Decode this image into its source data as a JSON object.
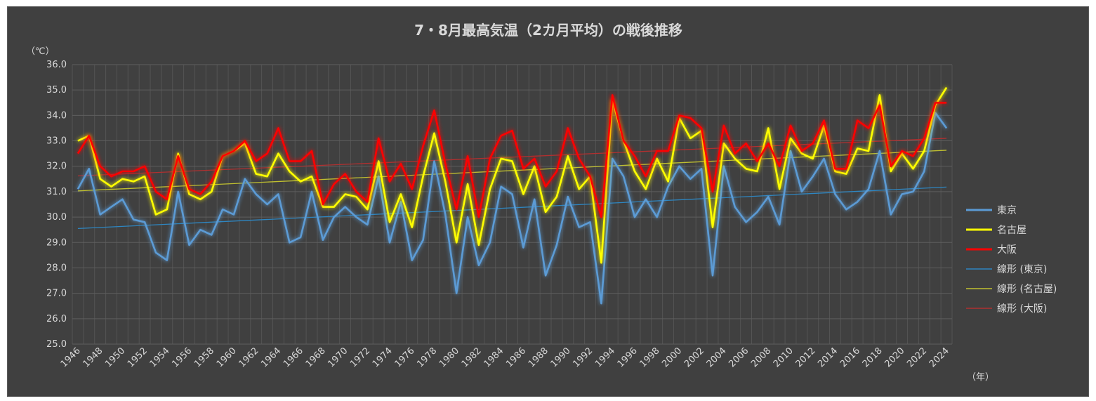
{
  "chart_data": {
    "type": "line",
    "title": "7・8月最高気温（2カ月平均）の戦後推移",
    "yunit": "（℃）",
    "xunit": "（年）",
    "ylim": [
      25.0,
      36.0
    ],
    "ystep": 1.0,
    "y_ticks": [
      "25.0",
      "26.0",
      "27.0",
      "28.0",
      "29.0",
      "30.0",
      "31.0",
      "32.0",
      "33.0",
      "34.0",
      "35.0",
      "36.0"
    ],
    "x_start": 1946,
    "x_end": 2024,
    "x_tick_labels": [
      "1946",
      "1948",
      "1950",
      "1952",
      "1954",
      "1956",
      "1958",
      "1960",
      "1962",
      "1964",
      "1966",
      "1968",
      "1970",
      "1972",
      "1974",
      "1976",
      "1978",
      "1980",
      "1982",
      "1984",
      "1986",
      "1988",
      "1990",
      "1992",
      "1994",
      "1996",
      "1998",
      "2000",
      "2002",
      "2004",
      "2006",
      "2008",
      "2010",
      "2012",
      "2014",
      "2016",
      "2018",
      "2020",
      "2022",
      "2024"
    ],
    "grid": true,
    "legend_position": "right",
    "series": [
      {
        "name": "東京",
        "color": "#5b9bd5",
        "values": [
          31.1,
          31.9,
          30.1,
          30.4,
          30.7,
          29.9,
          29.8,
          28.6,
          28.3,
          31.0,
          28.9,
          29.5,
          29.3,
          30.3,
          30.1,
          31.5,
          30.9,
          30.5,
          30.9,
          29.0,
          29.2,
          31.0,
          29.1,
          30.0,
          30.4,
          30.0,
          29.7,
          31.6,
          29.0,
          30.6,
          28.3,
          29.1,
          32.2,
          30.1,
          27.0,
          30.0,
          28.1,
          29.0,
          31.2,
          30.9,
          28.8,
          30.7,
          27.7,
          28.9,
          30.8,
          29.6,
          29.8,
          26.6,
          32.3,
          31.6,
          30.0,
          30.7,
          30.0,
          31.2,
          32.0,
          31.5,
          31.9,
          27.7,
          32.0,
          30.4,
          29.8,
          30.2,
          30.8,
          29.7,
          32.6,
          31.0,
          31.6,
          32.3,
          30.9,
          30.3,
          30.6,
          31.1,
          32.6,
          30.1,
          30.9,
          31.0,
          31.8,
          34.1,
          33.5
        ]
      },
      {
        "name": "名古屋",
        "color": "#ffff00",
        "values": [
          33.0,
          33.2,
          31.5,
          31.2,
          31.5,
          31.4,
          31.6,
          30.1,
          30.3,
          32.5,
          30.9,
          30.7,
          31.0,
          32.4,
          32.6,
          32.9,
          31.7,
          31.6,
          32.5,
          31.8,
          31.4,
          31.6,
          30.4,
          30.4,
          30.9,
          30.8,
          30.3,
          32.2,
          29.8,
          30.9,
          29.6,
          31.6,
          33.3,
          31.4,
          29.0,
          31.3,
          28.9,
          31.1,
          32.3,
          32.2,
          30.9,
          32.0,
          30.2,
          30.8,
          32.4,
          31.1,
          31.6,
          28.2,
          34.6,
          33.0,
          31.8,
          31.1,
          32.3,
          31.4,
          33.9,
          33.1,
          33.4,
          29.6,
          32.9,
          32.3,
          31.9,
          31.8,
          33.5,
          31.1,
          33.1,
          32.5,
          32.3,
          33.6,
          31.8,
          31.7,
          32.7,
          32.6,
          34.8,
          31.8,
          32.5,
          31.9,
          32.6,
          34.4,
          35.1
        ]
      },
      {
        "name": "大阪",
        "color": "#ff0000",
        "values": [
          32.5,
          33.2,
          32.0,
          31.6,
          31.8,
          31.8,
          32.0,
          31.0,
          30.7,
          32.4,
          31.1,
          30.9,
          31.4,
          32.4,
          32.6,
          33.0,
          32.2,
          32.5,
          33.5,
          32.2,
          32.2,
          32.6,
          30.5,
          31.3,
          31.7,
          31.0,
          30.6,
          33.1,
          31.4,
          32.1,
          31.1,
          32.8,
          34.2,
          32.1,
          30.3,
          32.4,
          30.0,
          32.3,
          33.2,
          33.4,
          31.9,
          32.3,
          31.2,
          31.8,
          33.5,
          32.3,
          31.6,
          30.0,
          34.8,
          33.0,
          32.4,
          31.6,
          32.6,
          32.6,
          34.0,
          33.9,
          33.5,
          31.0,
          33.6,
          32.5,
          32.9,
          32.2,
          32.9,
          32.0,
          33.6,
          32.6,
          32.9,
          33.8,
          31.9,
          31.9,
          33.8,
          33.5,
          34.4,
          32.0,
          32.6,
          32.4,
          33.1,
          34.5,
          34.5
        ]
      }
    ],
    "trendlines": [
      {
        "name": "線形 (東京)",
        "color": "#2e86c1",
        "start": 29.55,
        "end": 31.18
      },
      {
        "name": "線形 (名古屋)",
        "color": "#c0c030",
        "start": 31.03,
        "end": 32.63
      },
      {
        "name": "線形 (大阪)",
        "color": "#b03030",
        "start": 31.62,
        "end": 33.1
      }
    ]
  }
}
